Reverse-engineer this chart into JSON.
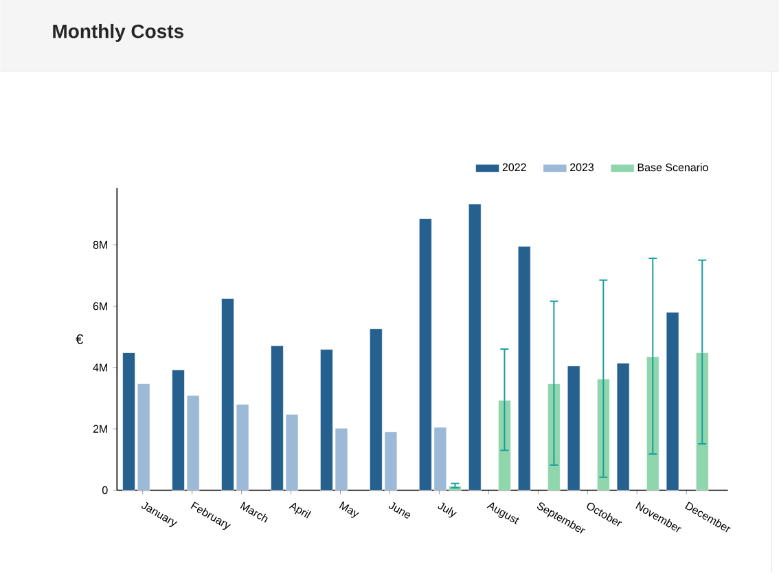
{
  "chart_data": {
    "type": "bar",
    "title": "Monthly Costs",
    "ylabel": "€",
    "categories": [
      "January",
      "February",
      "March",
      "April",
      "May",
      "June",
      "July",
      "August",
      "September",
      "October",
      "November",
      "December"
    ],
    "series": [
      {
        "name": "2022",
        "color": "#26608f",
        "values": [
          4480000,
          3920000,
          6250000,
          4710000,
          4590000,
          5260000,
          8850000,
          9330000,
          7950000,
          4050000,
          4140000,
          5800000
        ]
      },
      {
        "name": "2023",
        "color": "#9cb9d7",
        "values": [
          3470000,
          3090000,
          2800000,
          2470000,
          2020000,
          1900000,
          2050000,
          null,
          null,
          null,
          null,
          null
        ]
      },
      {
        "name": "Base Scenario",
        "color": "#8fd6ac",
        "values": [
          null,
          null,
          null,
          null,
          null,
          null,
          130000,
          2930000,
          3470000,
          3620000,
          4350000,
          4480000
        ],
        "errors": [
          null,
          null,
          null,
          null,
          null,
          null,
          [
            80000,
            220000
          ],
          [
            1300000,
            4600000
          ],
          [
            820000,
            6160000
          ],
          [
            420000,
            6850000
          ],
          [
            1180000,
            7560000
          ],
          [
            1510000,
            7500000
          ]
        ]
      }
    ],
    "ylim": [
      0,
      9850000
    ],
    "yticks": [
      0,
      {
        "value": 2000000,
        "label": "2M"
      },
      {
        "value": 4000000,
        "label": "4M"
      },
      {
        "value": 6000000,
        "label": "6M"
      },
      {
        "value": 8000000,
        "label": "8M"
      }
    ],
    "legend": "top right",
    "grid": false
  }
}
